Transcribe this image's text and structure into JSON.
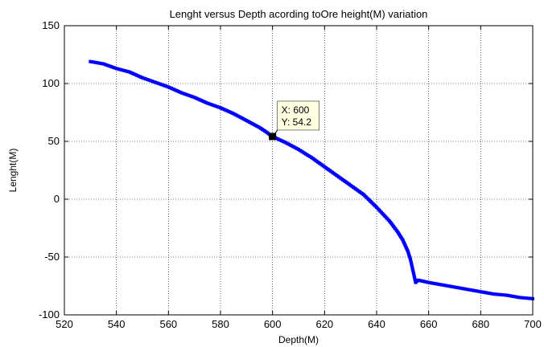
{
  "chart_data": {
    "type": "scatter",
    "title": "Lenght versus Depth acording toOre height(M) variation",
    "xlabel": "Depth(M)",
    "ylabel": "Lenght(M)",
    "xlim": [
      520,
      700
    ],
    "ylim": [
      -100,
      150
    ],
    "xticks": [
      520,
      540,
      560,
      580,
      600,
      620,
      640,
      660,
      680,
      700
    ],
    "yticks": [
      -100,
      -50,
      0,
      50,
      100,
      150
    ],
    "grid": true,
    "marker_color": "#0000ff",
    "series": [
      {
        "points": [
          [
            530,
            119
          ],
          [
            535,
            117
          ],
          [
            540,
            113
          ],
          [
            545,
            110
          ],
          [
            550,
            105
          ],
          [
            555,
            101
          ],
          [
            560,
            97
          ],
          [
            565,
            92
          ],
          [
            570,
            88
          ],
          [
            575,
            83
          ],
          [
            580,
            79
          ],
          [
            585,
            74
          ],
          [
            590,
            68
          ],
          [
            595,
            62
          ],
          [
            597,
            59
          ],
          [
            600,
            54.2
          ],
          [
            605,
            49
          ],
          [
            610,
            43
          ],
          [
            615,
            36
          ],
          [
            620,
            28
          ],
          [
            625,
            20
          ],
          [
            630,
            12
          ],
          [
            635,
            4
          ],
          [
            640,
            -7
          ],
          [
            645,
            -19
          ],
          [
            648,
            -28
          ],
          [
            650,
            -35
          ],
          [
            652,
            -45
          ],
          [
            653,
            -52
          ],
          [
            654,
            -62
          ],
          [
            655,
            -72
          ],
          [
            656,
            -70
          ],
          [
            660,
            -72
          ],
          [
            665,
            -74
          ],
          [
            670,
            -76
          ],
          [
            675,
            -78
          ],
          [
            680,
            -80
          ],
          [
            685,
            -82
          ],
          [
            690,
            -83
          ],
          [
            695,
            -85
          ],
          [
            700,
            -86
          ]
        ]
      }
    ],
    "datatip": {
      "x": 600,
      "y": 54.2,
      "x_text": "X: 600",
      "y_text": "Y: 54.2"
    }
  }
}
